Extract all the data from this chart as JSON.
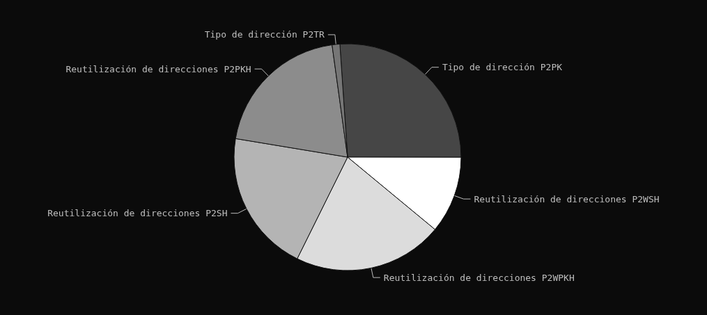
{
  "chart_data": {
    "type": "pie",
    "categories": [
      "Tipo de dirección P2PK",
      "Reutilización de direcciones P2WSH",
      "Reutilización de direcciones P2WPKH",
      "Reutilización de direcciones P2SH",
      "Reutilización de direcciones P2PKH",
      "Tipo de dirección P2TR"
    ],
    "values": [
      26.1,
      11,
      21.3,
      20.3,
      20.2,
      1.1
    ],
    "colors": [
      "#464646",
      "#ffffff",
      "#dcdcdc",
      "#b4b4b4",
      "#8c8c8c",
      "#767676"
    ],
    "legend": false
  }
}
